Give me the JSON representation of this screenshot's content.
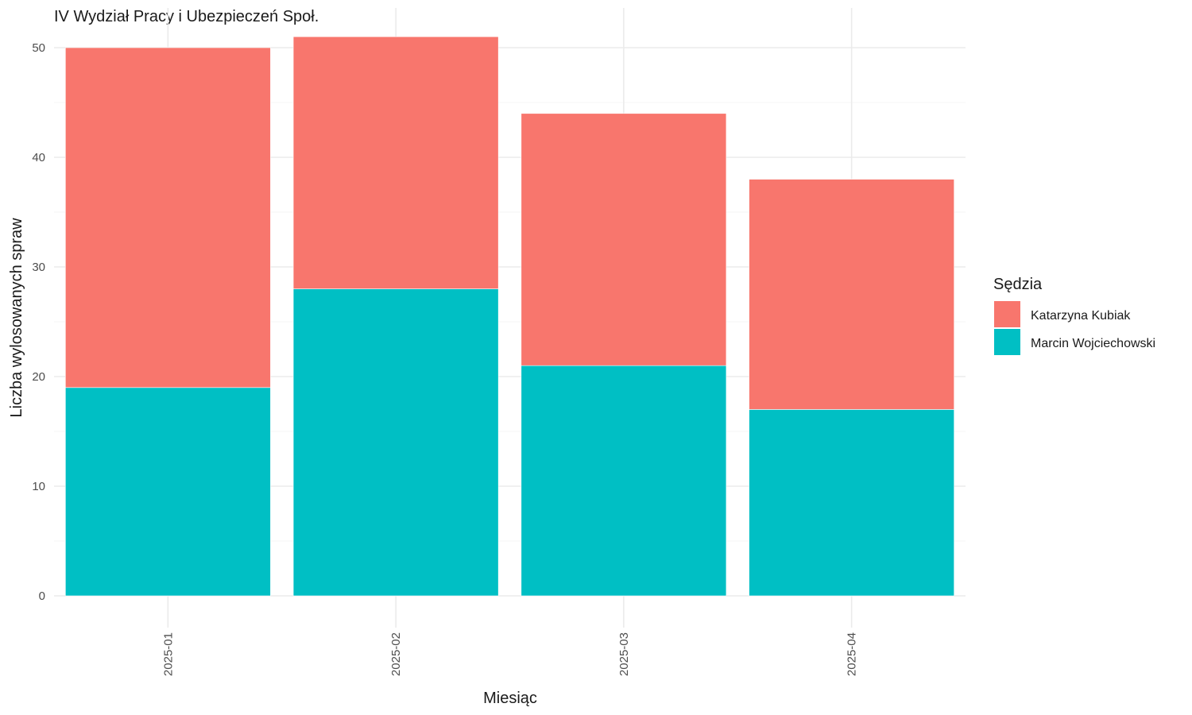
{
  "chart_data": {
    "type": "bar",
    "stacked": true,
    "title": "IV Wydział Pracy i Ubezpieczeń Społ.",
    "xlabel": "Miesiąc",
    "ylabel": "Liczba wylosowanych spraw",
    "categories": [
      "2025-01",
      "2025-02",
      "2025-03",
      "2025-04"
    ],
    "series": [
      {
        "name": "Katarzyna Kubiak",
        "color": "#F8766D",
        "values": [
          31,
          23,
          23,
          21
        ]
      },
      {
        "name": "Marcin Wojciechowski",
        "color": "#00BFC4",
        "values": [
          19,
          28,
          21,
          17
        ]
      }
    ],
    "stack_order": [
      "Marcin Wojciechowski",
      "Katarzyna Kubiak"
    ],
    "ylim": [
      0,
      52
    ],
    "yticks": [
      0,
      10,
      20,
      30,
      40,
      50
    ],
    "grid": true,
    "x_tick_rotation": "vertical",
    "legend": {
      "title": "Sędzia",
      "position": "right"
    }
  }
}
